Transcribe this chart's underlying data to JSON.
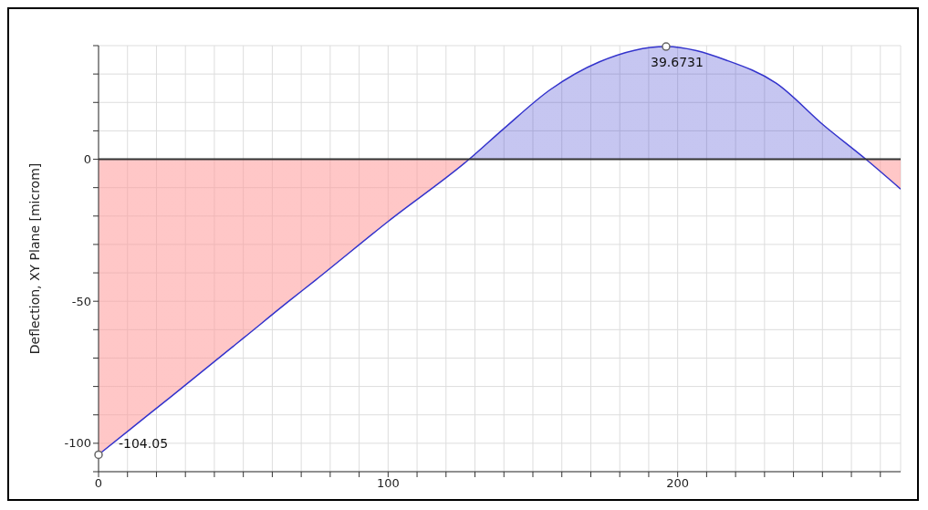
{
  "chart_data": {
    "type": "area",
    "ylabel": "Deflection, XY Plane [microm]",
    "x": [
      0,
      11,
      25,
      50,
      65.7,
      75,
      100,
      128,
      140,
      156,
      173,
      196,
      217,
      234,
      250.5,
      265,
      277
    ],
    "series": [
      {
        "color": "#3333cc",
        "values": [
          -104,
          -95,
          -83.6,
          -63,
          -50,
          -42.5,
          -21.9,
          0,
          10.8,
          24.5,
          34.3,
          39.7,
          34.8,
          26.8,
          11.9,
          0,
          -10.5
        ]
      }
    ],
    "xlim": [
      0,
      277
    ],
    "xticks": [
      0,
      {
        "value": 10,
        "label": null
      },
      {
        "value": 20,
        "label": null
      },
      {
        "value": 30,
        "label": null
      },
      {
        "value": 40,
        "label": null
      },
      {
        "value": 50,
        "label": null
      },
      {
        "value": 60,
        "label": null
      },
      {
        "value": 70,
        "label": null
      },
      {
        "value": 80,
        "label": null
      },
      {
        "value": 90,
        "label": null
      },
      100,
      {
        "value": 110,
        "label": null
      },
      {
        "value": 120,
        "label": null
      },
      {
        "value": 130,
        "label": null
      },
      {
        "value": 140,
        "label": null
      },
      {
        "value": 150,
        "label": null
      },
      {
        "value": 160,
        "label": null
      },
      {
        "value": 170,
        "label": null
      },
      {
        "value": 180,
        "label": null
      },
      {
        "value": 190,
        "label": null
      },
      200,
      {
        "value": 210,
        "label": null
      },
      {
        "value": 220,
        "label": null
      },
      {
        "value": 230,
        "label": null
      },
      {
        "value": 240,
        "label": null
      },
      {
        "value": 250,
        "label": null
      },
      {
        "value": 260,
        "label": null
      },
      {
        "value": 270,
        "label": null
      }
    ],
    "ylim": [
      -110,
      40
    ],
    "yticks": [
      {
        "value": -110,
        "label": null
      },
      -100,
      {
        "value": -90,
        "label": null
      },
      {
        "value": -80,
        "label": null
      },
      {
        "value": -70,
        "label": null
      },
      {
        "value": -60,
        "label": null
      },
      -50,
      {
        "value": -40,
        "label": null
      },
      {
        "value": -30,
        "label": null
      },
      {
        "value": -20,
        "label": null
      },
      {
        "value": -10,
        "label": null
      },
      0,
      {
        "value": 10,
        "label": null
      },
      {
        "value": 20,
        "label": null
      },
      {
        "value": 30,
        "label": null
      },
      {
        "value": 40,
        "label": null
      }
    ],
    "grid": true,
    "marker": "none",
    "ref_lines": [
      {
        "axis": "y",
        "value": 0,
        "color": "#333333"
      }
    ],
    "annotations": [
      {
        "text": "-104.05",
        "x": 0,
        "y": -104.05
      },
      {
        "text": "39.6731",
        "x": 196,
        "y": 39.6731
      }
    ]
  }
}
